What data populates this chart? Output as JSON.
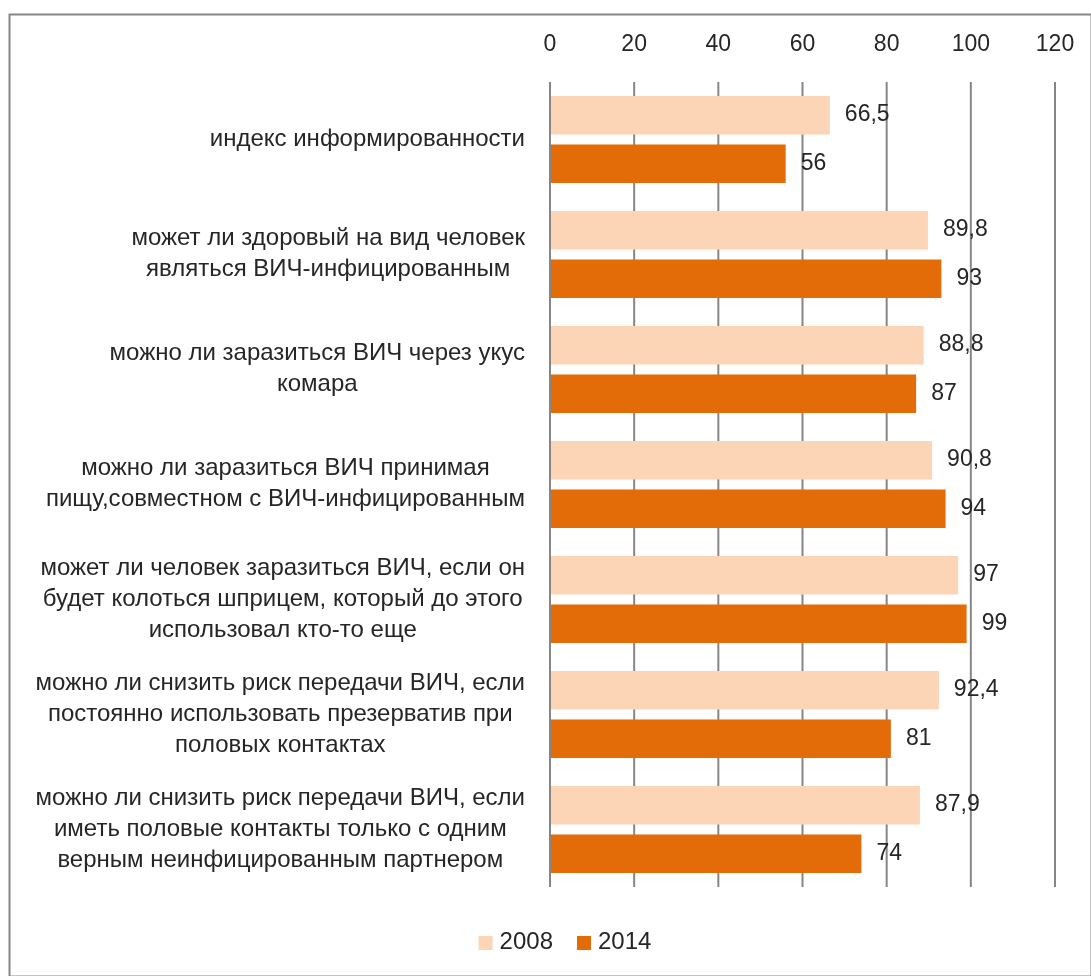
{
  "chart_data": {
    "type": "bar",
    "orientation": "horizontal",
    "categories": [
      "индекс информированности",
      "может ли здоровый на вид человек являться ВИЧ-инфицированным",
      "можно ли заразиться ВИЧ через укус комара",
      "можно ли заразиться ВИЧ принимая пищу,совместном с ВИЧ-инфицированным",
      "может ли человек заразиться ВИЧ, если он будет колоться шприцем, который до этого использовал кто-то еще",
      "можно ли снизить риск передачи ВИЧ, если постоянно использовать презерватив при половых контактах",
      "можно ли снизить риск передачи ВИЧ, если иметь половые контакты только с одним верным неинфицированным партнером"
    ],
    "series": [
      {
        "name": "2008",
        "color": "#fbd5b5",
        "values": [
          66.5,
          89.8,
          88.8,
          90.8,
          97,
          92.4,
          87.9
        ],
        "value_labels": [
          "66,5",
          "89,8",
          "88,8",
          "90,8",
          "97",
          "92,4",
          "87,9"
        ]
      },
      {
        "name": "2014",
        "color": "#e36c09",
        "values": [
          56,
          93,
          87,
          94,
          99,
          81,
          74
        ],
        "value_labels": [
          "56",
          "93",
          "87",
          "94",
          "99",
          "81",
          "74"
        ]
      }
    ],
    "xlim": [
      0,
      120
    ],
    "xticks": [
      0,
      20,
      40,
      60,
      80,
      100,
      120
    ],
    "grid": "x",
    "legend": "bottom"
  }
}
